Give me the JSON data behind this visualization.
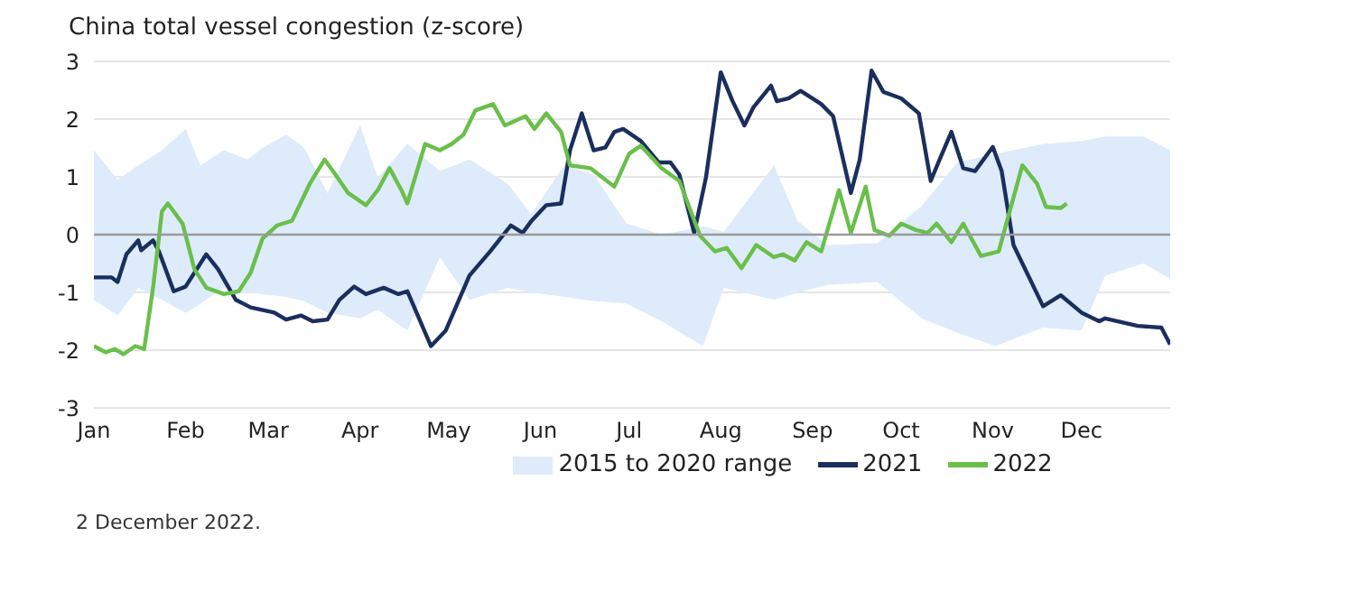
{
  "chart_data": {
    "type": "line",
    "title": "China total vessel congestion (z-score)",
    "xlim": [
      "--01-01",
      "--12-31"
    ],
    "xticks": [
      {
        "value": "--01-01",
        "label": "Jan"
      },
      {
        "value": "--02-01",
        "label": "Feb"
      },
      {
        "value": "--03-01",
        "label": "Mar"
      },
      {
        "value": "--04-01",
        "label": "Apr"
      },
      {
        "value": "--05-01",
        "label": "May"
      },
      {
        "value": "--06-01",
        "label": "Jun"
      },
      {
        "value": "--07-01",
        "label": "Jul"
      },
      {
        "value": "--08-01",
        "label": "Aug"
      },
      {
        "value": "--09-01",
        "label": "Sep"
      },
      {
        "value": "--10-01",
        "label": "Oct"
      },
      {
        "value": "--11-01",
        "label": "Nov"
      },
      {
        "value": "--12-01",
        "label": "Dec"
      }
    ],
    "ylim": [
      -3,
      3
    ],
    "yticks": [
      -3,
      -2,
      -1,
      0,
      1,
      2,
      3
    ],
    "grid": "y",
    "legend": "bottom",
    "ref_lines": [
      {
        "axis": "y",
        "value": 0,
        "color": "#9a9a9a"
      }
    ],
    "annotations": [
      "2 December 2022."
    ],
    "series": [
      {
        "name": "2015 to 2020 range",
        "color": "#deebfa",
        "x": [
          "--01-01",
          "--01-09",
          "--01-16",
          "--01-24",
          "--02-01",
          "--02-06",
          "--02-14",
          "--02-22",
          "--02-27",
          "--03-07",
          "--03-13",
          "--03-21",
          "--04-01",
          "--04-07",
          "--04-17",
          "--04-28",
          "--05-08",
          "--05-21",
          "--05-29",
          "--06-09",
          "--06-19",
          "--06-30",
          "--07-12",
          "--07-26",
          "--08-02",
          "--08-19",
          "--08-27",
          "--09-06",
          "--09-23",
          "--10-08",
          "--10-20",
          "--11-02",
          "--11-18",
          "--12-01",
          "--12-09",
          "--12-22",
          "--12-31"
        ],
        "values": [
          null,
          null,
          null,
          null,
          null,
          null,
          null,
          null,
          null,
          null,
          null,
          null,
          null,
          null,
          null,
          null,
          null,
          null,
          null,
          null,
          null,
          null,
          null,
          null,
          null,
          null,
          null,
          null,
          null,
          null,
          null,
          null,
          null,
          null,
          null,
          null,
          null
        ],
        "upper": [
          1.46,
          0.95,
          1.2,
          1.46,
          1.83,
          1.2,
          1.46,
          1.3,
          1.5,
          1.73,
          1.51,
          0.72,
          1.89,
          0.99,
          1.57,
          1.1,
          1.3,
          0.88,
          0.35,
          1.2,
          1.04,
          0.2,
          0,
          0.14,
          0.05,
          1.2,
          0.24,
          -0.18,
          -0.15,
          0.5,
          1.25,
          1.4,
          1.57,
          1.62,
          1.7,
          1.7,
          1.46
        ],
        "lower": [
          -1.13,
          -1.4,
          -0.92,
          -1.13,
          -1.35,
          -1.2,
          -0.92,
          -1,
          -1.03,
          -1.08,
          -1.15,
          -1.35,
          -1.45,
          -1.3,
          -1.66,
          -0.39,
          -1.13,
          -0.92,
          -1,
          -1.08,
          -1.15,
          -1.19,
          -1.5,
          -1.93,
          -0.92,
          -1.13,
          -1,
          -0.87,
          -0.82,
          -1.45,
          -1.7,
          -1.93,
          -1.61,
          -1.66,
          -0.71,
          -0.5,
          -0.76
        ]
      },
      {
        "name": "2021",
        "color": "#1b2f5e",
        "x": [
          "--01-01",
          "--01-07",
          "--01-09",
          "--01-12",
          "--01-16",
          "--01-17",
          "--01-21",
          "--01-23",
          "--01-28",
          "--02-01",
          "--02-08",
          "--02-12",
          "--02-18",
          "--02-23",
          "--03-03",
          "--03-07",
          "--03-12",
          "--03-16",
          "--03-21",
          "--03-25",
          "--03-30",
          "--04-03",
          "--04-09",
          "--04-14",
          "--04-17",
          "--04-25",
          "--04-30",
          "--05-08",
          "--05-15",
          "--05-22",
          "--05-26",
          "--05-29",
          "--06-03",
          "--06-08",
          "--06-11",
          "--06-15",
          "--06-19",
          "--06-23",
          "--06-26",
          "--06-29",
          "--07-05",
          "--07-11",
          "--07-15",
          "--07-18",
          "--07-23",
          "--07-27",
          "--08-01",
          "--08-05",
          "--08-09",
          "--08-12",
          "--08-18",
          "--08-20",
          "--08-24",
          "--08-28",
          "--09-04",
          "--09-08",
          "--09-14",
          "--09-17",
          "--09-21",
          "--09-25",
          "--10-01",
          "--10-07",
          "--10-11",
          "--10-14",
          "--10-18",
          "--10-22",
          "--10-26",
          "--11-01",
          "--11-04",
          "--11-08",
          "--11-18",
          "--11-24",
          "--12-01",
          "--12-07",
          "--12-09",
          "--12-20",
          "--12-28",
          "--12-31"
        ],
        "values": [
          -0.74,
          -0.74,
          -0.82,
          -0.34,
          -0.1,
          -0.27,
          -0.1,
          -0.29,
          -0.98,
          -0.9,
          -0.34,
          -0.6,
          -1.13,
          -1.26,
          -1.35,
          -1.47,
          -1.4,
          -1.5,
          -1.47,
          -1.13,
          -0.9,
          -1.03,
          -0.92,
          -1.03,
          -0.98,
          -1.93,
          -1.66,
          -0.71,
          -0.29,
          0.16,
          0.03,
          0.24,
          0.51,
          0.54,
          1.46,
          2.1,
          1.46,
          1.51,
          1.78,
          1.83,
          1.62,
          1.25,
          1.25,
          1.04,
          0.03,
          0.99,
          2.81,
          2.31,
          1.89,
          2.2,
          2.58,
          2.31,
          2.36,
          2.49,
          2.26,
          2.05,
          0.72,
          1.3,
          2.84,
          2.47,
          2.36,
          2.1,
          0.93,
          1.3,
          1.78,
          1.15,
          1.1,
          1.52,
          1.1,
          -0.18,
          -1.24,
          -1.05,
          -1.35,
          -1.5,
          -1.45,
          -1.58,
          -1.61,
          -1.9
        ]
      },
      {
        "name": "2022",
        "color": "#6abf4b",
        "x": [
          "--01-01",
          "--01-05",
          "--01-08",
          "--01-11",
          "--01-15",
          "--01-18",
          "--01-21",
          "--01-24",
          "--01-26",
          "--01-31",
          "--02-04",
          "--02-08",
          "--02-14",
          "--02-19",
          "--02-23",
          "--02-27",
          "--03-04",
          "--03-09",
          "--03-15",
          "--03-20",
          "--03-23",
          "--03-28",
          "--04-03",
          "--04-07",
          "--04-11",
          "--04-15",
          "--04-17",
          "--04-23",
          "--04-28",
          "--05-02",
          "--05-06",
          "--05-10",
          "--05-16",
          "--05-20",
          "--05-27",
          "--05-30",
          "--06-03",
          "--06-08",
          "--06-11",
          "--06-18",
          "--06-26",
          "--07-01",
          "--07-05",
          "--07-12",
          "--07-18",
          "--07-25",
          "--07-30",
          "--08-03",
          "--08-08",
          "--08-13",
          "--08-19",
          "--08-22",
          "--08-26",
          "--08-30",
          "--09-04",
          "--09-10",
          "--09-14",
          "--09-19",
          "--09-22",
          "--09-27",
          "--10-01",
          "--10-06",
          "--10-10",
          "--10-13",
          "--10-18",
          "--10-22",
          "--10-28",
          "--11-03",
          "--11-11",
          "--11-16",
          "--11-19",
          "--11-24",
          "--11-26"
        ],
        "values": [
          -1.93,
          -2.04,
          -1.98,
          -2.07,
          -1.93,
          -1.98,
          -0.92,
          0.4,
          0.54,
          0.19,
          -0.6,
          -0.92,
          -1.03,
          -0.98,
          -0.66,
          -0.07,
          0.16,
          0.24,
          0.88,
          1.3,
          1.09,
          0.72,
          0.51,
          0.77,
          1.15,
          0.77,
          0.54,
          1.57,
          1.46,
          1.57,
          1.73,
          2.15,
          2.26,
          1.89,
          2.05,
          1.83,
          2.1,
          1.78,
          1.2,
          1.15,
          0.83,
          1.4,
          1.54,
          1.15,
          0.93,
          -0.02,
          -0.29,
          -0.23,
          -0.58,
          -0.18,
          -0.39,
          -0.34,
          -0.45,
          -0.13,
          -0.29,
          0.77,
          0.03,
          0.83,
          0.08,
          -0.02,
          0.19,
          0.08,
          0.03,
          0.19,
          -0.13,
          0.19,
          -0.37,
          -0.29,
          1.2,
          0.88,
          0.48,
          0.46,
          0.54
        ]
      }
    ]
  }
}
